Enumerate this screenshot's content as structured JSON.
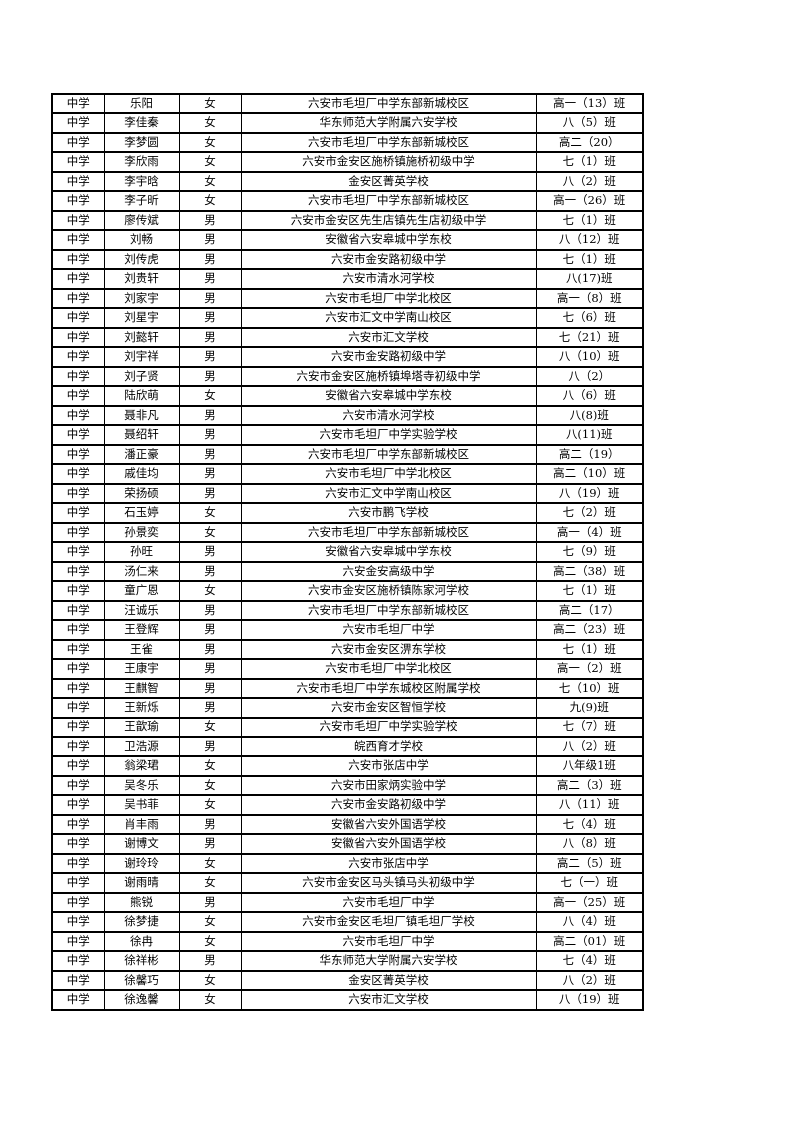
{
  "page": {
    "background_color": "#ffffff",
    "border_color": "#000000"
  },
  "table": {
    "column_keys": [
      "level",
      "name",
      "gender",
      "school",
      "class_name"
    ],
    "rows": [
      [
        "中学",
        "乐阳",
        "女",
        "六安市毛坦厂中学东部新城校区",
        "高一（13）班"
      ],
      [
        "中学",
        "李佳秦",
        "女",
        "华东师范大学附属六安学校",
        "八（5）班"
      ],
      [
        "中学",
        "李梦圆",
        "女",
        "六安市毛坦厂中学东部新城校区",
        "高二（20）"
      ],
      [
        "中学",
        "李欣雨",
        "女",
        "六安市金安区施桥镇施桥初级中学",
        "七（1）班"
      ],
      [
        "中学",
        "李宇晗",
        "女",
        "金安区菁英学校",
        "八（2）班"
      ],
      [
        "中学",
        "李子昕",
        "女",
        "六安市毛坦厂中学东部新城校区",
        "高一（26）班"
      ],
      [
        "中学",
        "廖传斌",
        "男",
        "六安市金安区先生店镇先生店初级中学",
        "七（1）班"
      ],
      [
        "中学",
        "刘畅",
        "男",
        "安徽省六安皋城中学东校",
        "八（12）班"
      ],
      [
        "中学",
        "刘传虎",
        "男",
        "六安市金安路初级中学",
        "七（1）班"
      ],
      [
        "中学",
        "刘贵轩",
        "男",
        "六安市清水河学校",
        "八(17)班"
      ],
      [
        "中学",
        "刘家宇",
        "男",
        "六安市毛坦厂中学北校区",
        "高一（8）班"
      ],
      [
        "中学",
        "刘星宇",
        "男",
        "六安市汇文中学南山校区",
        "七（6）班"
      ],
      [
        "中学",
        "刘懿轩",
        "男",
        "六安市汇文学校",
        "七（21）班"
      ],
      [
        "中学",
        "刘宇祥",
        "男",
        "六安市金安路初级中学",
        "八（10）班"
      ],
      [
        "中学",
        "刘子贤",
        "男",
        "六安市金安区施桥镇埠塔寺初级中学",
        "八（2）"
      ],
      [
        "中学",
        "陆欣萌",
        "女",
        "安徽省六安皋城中学东校",
        "八（6）班"
      ],
      [
        "中学",
        "聂非凡",
        "男",
        "六安市清水河学校",
        "八(8)班"
      ],
      [
        "中学",
        "聂绍轩",
        "男",
        "六安市毛坦厂中学实验学校",
        "八(11)班"
      ],
      [
        "中学",
        "潘正豪",
        "男",
        "六安市毛坦厂中学东部新城校区",
        "高二（19）"
      ],
      [
        "中学",
        "戚佳均",
        "男",
        "六安市毛坦厂中学北校区",
        "高二（10）班"
      ],
      [
        "中学",
        "荣扬硕",
        "男",
        "六安市汇文中学南山校区",
        "八（19）班"
      ],
      [
        "中学",
        "石玉婷",
        "女",
        "六安市鹏飞学校",
        "七（2）班"
      ],
      [
        "中学",
        "孙景奕",
        "女",
        "六安市毛坦厂中学东部新城校区",
        "高一（4）班"
      ],
      [
        "中学",
        "孙旺",
        "男",
        "安徽省六安皋城中学东校",
        "七（9）班"
      ],
      [
        "中学",
        "汤仁来",
        "男",
        "六安金安高级中学",
        "高二（38）班"
      ],
      [
        "中学",
        "童广恩",
        "女",
        "六安市金安区施桥镇陈家河学校",
        "七（1）班"
      ],
      [
        "中学",
        "汪诚乐",
        "男",
        "六安市毛坦厂中学东部新城校区",
        "高二（17）"
      ],
      [
        "中学",
        "王登辉",
        "男",
        "六安市毛坦厂中学",
        "高二（23）班"
      ],
      [
        "中学",
        "王雀",
        "男",
        "六安市金安区淠东学校",
        "七（1）班"
      ],
      [
        "中学",
        "王康宇",
        "男",
        "六安市毛坦厂中学北校区",
        "高一（2）班"
      ],
      [
        "中学",
        "王麒智",
        "男",
        "六安市毛坦厂中学东城校区附属学校",
        "七（10）班"
      ],
      [
        "中学",
        "王新烁",
        "男",
        "六安市金安区智恒学校",
        "九(9)班"
      ],
      [
        "中学",
        "王歆瑜",
        "女",
        "六安市毛坦厂中学实验学校",
        "七（7）班"
      ],
      [
        "中学",
        "卫浩源",
        "男",
        "皖西育才学校",
        "八（2）班"
      ],
      [
        "中学",
        "翁梁珺",
        "女",
        "六安市张店中学",
        "八年级1班"
      ],
      [
        "中学",
        "吴冬乐",
        "女",
        "六安市田家炳实验中学",
        "高二（3）班"
      ],
      [
        "中学",
        "吴书菲",
        "女",
        "六安市金安路初级中学",
        "八（11）班"
      ],
      [
        "中学",
        "肖丰雨",
        "男",
        "安徽省六安外国语学校",
        "七（4）班"
      ],
      [
        "中学",
        "谢博文",
        "男",
        "安徽省六安外国语学校",
        "八（8）班"
      ],
      [
        "中学",
        "谢玲玲",
        "女",
        "六安市张店中学",
        "高二（5）班"
      ],
      [
        "中学",
        "谢雨晴",
        "女",
        "六安市金安区马头镇马头初级中学",
        "七（一）班"
      ],
      [
        "中学",
        "熊锐",
        "男",
        "六安市毛坦厂中学",
        "高一（25）班"
      ],
      [
        "中学",
        "徐梦捷",
        "女",
        "六安市金安区毛坦厂镇毛坦厂学校",
        "八（4）班"
      ],
      [
        "中学",
        "徐冉",
        "女",
        "六安市毛坦厂中学",
        "高二（01）班"
      ],
      [
        "中学",
        "徐祥彬",
        "男",
        "华东师范大学附属六安学校",
        "七（4）班"
      ],
      [
        "中学",
        "徐馨巧",
        "女",
        "金安区菁英学校",
        "八（2）班"
      ],
      [
        "中学",
        "徐逸馨",
        "女",
        "六安市汇文学校",
        "八（19）班"
      ]
    ]
  }
}
